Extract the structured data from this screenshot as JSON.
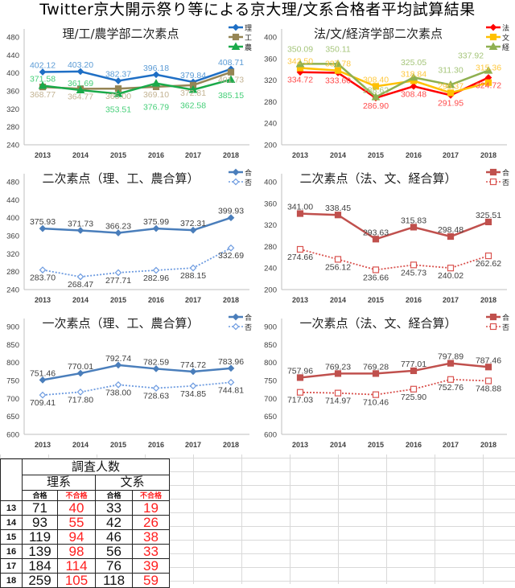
{
  "title": "Twitter京大開示祭り等による京大理/文系合格者平均試算結果",
  "chart_data": [
    {
      "type": "line",
      "title": "理/工/農学部二次素点",
      "categories": [
        "2013",
        "2014",
        "2015",
        "2016",
        "2017",
        "2018"
      ],
      "ylim": [
        240,
        480
      ],
      "yticks": [
        240,
        280,
        320,
        360,
        400,
        440,
        480
      ],
      "legend": "top-right",
      "grid": false,
      "series": [
        {
          "name": "理",
          "color": "#1f6fc5",
          "label_color": "#5b9bd5",
          "marker": "diamond",
          "dash": false,
          "label_pos": "above",
          "values": [
            402.12,
            403.2,
            382.37,
            396.18,
            379.84,
            408.71
          ]
        },
        {
          "name": "工",
          "color": "#958555",
          "label_color": "#c3b393",
          "marker": "square",
          "dash": false,
          "label_pos": "below",
          "values": [
            368.77,
            364.77,
            365.0,
            369.1,
            372.81,
            401.73
          ]
        },
        {
          "name": "農",
          "color": "#1aaa4a",
          "label_color": "#45cf78",
          "marker": "triangle",
          "dash": false,
          "label_pos": "below",
          "values": [
            371.58,
            361.69,
            353.51,
            376.79,
            362.58,
            385.15
          ]
        }
      ]
    },
    {
      "type": "line",
      "title": "法/文/経済学部二次素点",
      "categories": [
        "2013",
        "2014",
        "2015",
        "2016",
        "2017",
        "2018"
      ],
      "ylim": [
        200,
        400
      ],
      "yticks": [
        200,
        240,
        280,
        320,
        360,
        400
      ],
      "legend": "top-right",
      "grid": false,
      "series": [
        {
          "name": "法",
          "color": "#ff0000",
          "label_color": "#ff4b4b",
          "marker": "diamond",
          "dash": false,
          "label_pos": "below",
          "values": [
            334.72,
            333.6,
            286.9,
            308.48,
            291.95,
            324.72
          ]
        },
        {
          "name": "文",
          "color": "#ffc000",
          "label_color": "#ffc83d",
          "marker": "square",
          "dash": false,
          "label_pos": "above",
          "values": [
            342.5,
            337.78,
            308.4,
            318.84,
            296.37,
            315.36
          ]
        },
        {
          "name": "経",
          "color": "#8fb050",
          "label_color": "#a5c57a",
          "marker": "triangle",
          "dash": false,
          "label_pos": "above",
          "values": [
            350.09,
            350.11,
            288.62,
            325.05,
            311.3,
            337.92
          ]
        }
      ]
    },
    {
      "type": "line",
      "title": "二次素点（理、工、農合算）",
      "categories": [
        "2013",
        "2014",
        "2015",
        "2016",
        "2017",
        "2018"
      ],
      "ylim": [
        240,
        480
      ],
      "yticks": [
        240,
        280,
        320,
        360,
        400,
        440,
        480
      ],
      "legend": "top-right",
      "grid": false,
      "series": [
        {
          "name": "合",
          "color": "#4a7ebb",
          "label_color": "#404040",
          "marker": "diamond",
          "dash": false,
          "label_pos": "above",
          "values": [
            375.93,
            371.73,
            366.23,
            375.99,
            372.31,
            399.93
          ]
        },
        {
          "name": "否",
          "color": "#6d9be0",
          "label_color": "#404040",
          "marker": "diamond-open",
          "dash": true,
          "label_pos": "below",
          "values": [
            283.7,
            268.47,
            277.71,
            282.96,
            288.15,
            332.69
          ]
        }
      ]
    },
    {
      "type": "line",
      "title": "二次素点（法、文、経合算）",
      "categories": [
        "2013",
        "2014",
        "2015",
        "2016",
        "2017",
        "2018"
      ],
      "ylim": [
        200,
        400
      ],
      "yticks": [
        200,
        240,
        280,
        320,
        360,
        400
      ],
      "legend": "top-right",
      "grid": false,
      "series": [
        {
          "name": "合",
          "color": "#c0504d",
          "label_color": "#404040",
          "marker": "square",
          "dash": false,
          "label_pos": "above",
          "values": [
            341.0,
            338.45,
            293.63,
            315.83,
            298.48,
            325.51
          ]
        },
        {
          "name": "否",
          "color": "#d9534f",
          "label_color": "#404040",
          "marker": "square-open",
          "dash": true,
          "label_pos": "below",
          "values": [
            274.66,
            256.12,
            236.66,
            245.73,
            240.02,
            262.62
          ]
        }
      ]
    },
    {
      "type": "line",
      "title": "一次素点（理、工、農合算）",
      "categories": [
        "2013",
        "2014",
        "2015",
        "2016",
        "2017",
        "2018"
      ],
      "ylim": [
        600,
        900
      ],
      "yticks": [
        600,
        650,
        700,
        750,
        800,
        850,
        900
      ],
      "legend": "top-right",
      "grid": false,
      "series": [
        {
          "name": "合",
          "color": "#4a7ebb",
          "label_color": "#404040",
          "marker": "diamond",
          "dash": false,
          "label_pos": "above",
          "values": [
            751.46,
            770.01,
            792.74,
            782.59,
            774.72,
            783.96
          ]
        },
        {
          "name": "否",
          "color": "#6d9be0",
          "label_color": "#404040",
          "marker": "diamond-open",
          "dash": true,
          "label_pos": "below",
          "values": [
            709.41,
            717.8,
            738.0,
            728.63,
            734.85,
            744.81
          ]
        }
      ]
    },
    {
      "type": "line",
      "title": "一次素点（法、文、経合算）",
      "categories": [
        "2013",
        "2014",
        "2015",
        "2016",
        "2017",
        "2018"
      ],
      "ylim": [
        600,
        900
      ],
      "yticks": [
        600,
        650,
        700,
        750,
        800,
        850,
        900
      ],
      "legend": "top-right",
      "grid": false,
      "series": [
        {
          "name": "合",
          "color": "#c0504d",
          "label_color": "#404040",
          "marker": "square",
          "dash": false,
          "label_pos": "above",
          "values": [
            757.96,
            769.23,
            769.28,
            777.01,
            797.89,
            787.46
          ]
        },
        {
          "name": "否",
          "color": "#d9534f",
          "label_color": "#404040",
          "marker": "square-open",
          "dash": true,
          "label_pos": "below",
          "values": [
            717.03,
            714.97,
            710.46,
            725.9,
            752.76,
            748.88
          ]
        }
      ]
    }
  ],
  "table": {
    "title": "調査人数",
    "groups": [
      "理系",
      "文系"
    ],
    "subheaders": [
      "合格",
      "不合格",
      "合格",
      "不合格"
    ],
    "rows": [
      {
        "year": "13",
        "values": [
          "71",
          "40",
          "33",
          "19"
        ]
      },
      {
        "year": "14",
        "values": [
          "93",
          "55",
          "42",
          "26"
        ]
      },
      {
        "year": "15",
        "values": [
          "119",
          "94",
          "46",
          "38"
        ]
      },
      {
        "year": "16",
        "values": [
          "139",
          "98",
          "56",
          "33"
        ]
      },
      {
        "year": "17",
        "values": [
          "184",
          "114",
          "76",
          "39"
        ]
      },
      {
        "year": "18",
        "values": [
          "259",
          "105",
          "118",
          "59"
        ]
      }
    ]
  }
}
